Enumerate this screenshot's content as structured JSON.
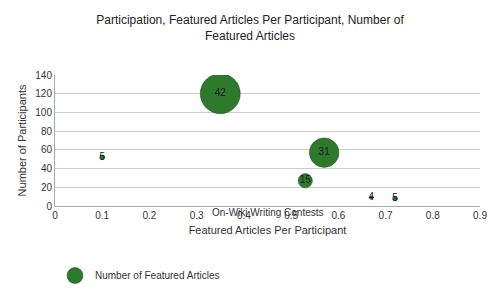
{
  "chart_data": {
    "type": "bubble",
    "title": "Participation, Featured Articles Per Participant, Number of\nFeatured Articles",
    "subtitle": "On-Wiki Writing Contests",
    "xlabel": "Featured Articles Per Participant",
    "ylabel": "Number of Participants",
    "x": [
      0.1,
      0.35,
      0.53,
      0.57,
      0.67,
      0.72
    ],
    "series": [
      {
        "name": "Number of Featured Articles",
        "color": "#2d7a2d",
        "values": [
          52,
          120,
          27,
          57,
          9,
          8
        ],
        "sizes": [
          5,
          42,
          15,
          31,
          4,
          5
        ]
      }
    ],
    "data_labels": true,
    "xlim": [
      0,
      0.9
    ],
    "ylim": [
      0,
      140
    ],
    "xticks": [
      0,
      0.1,
      0.2,
      0.3,
      0.4,
      0.5,
      0.6,
      0.7,
      0.8,
      0.9
    ],
    "yticks": [
      0,
      20,
      40,
      60,
      80,
      100,
      120,
      140
    ],
    "grid": "y",
    "legend": "bottom"
  }
}
